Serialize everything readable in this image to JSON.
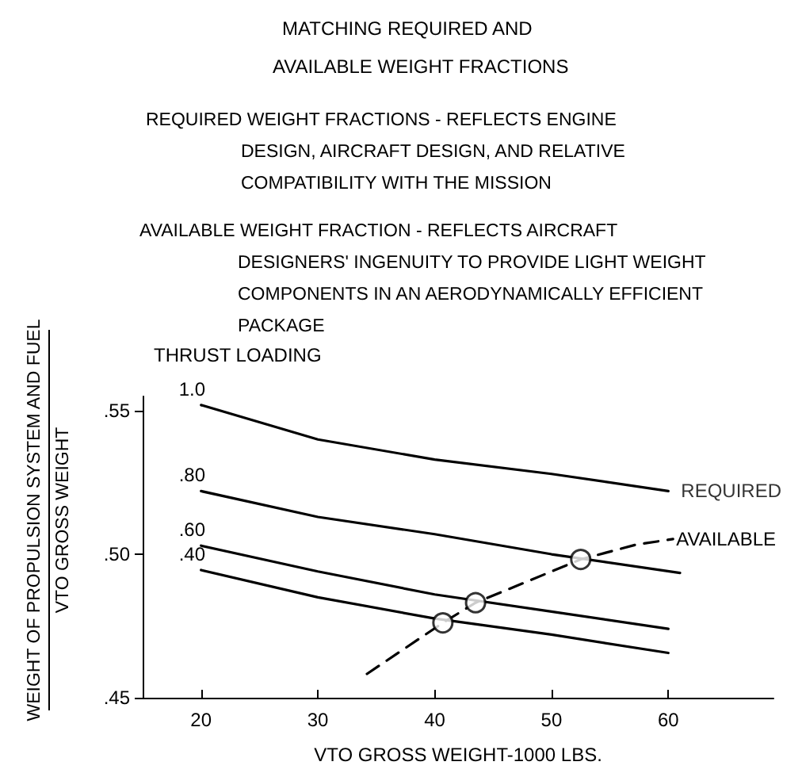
{
  "chart_data": {
    "type": "line",
    "title": "MATCHING REQUIRED AND\nAVAILABLE WEIGHT FRACTIONS",
    "annotations": [
      "REQUIRED WEIGHT FRACTIONS - REFLECTS ENGINE\nDESIGN, AIRCRAFT DESIGN, AND RELATIVE\nCOMPATIBILITY WITH THE MISSION",
      "AVAILABLE WEIGHT FRACTION - REFLECTS AIRCRAFT\nDESIGNERS' INGENUITY TO PROVIDE LIGHT WEIGHT\nCOMPONENTS IN AN AERODYNAMICALLY EFFICIENT\nPACKAGE",
      {
        "text": "REQUIRED",
        "x": 60,
        "y": 0.522
      }
    ],
    "legend_title": "THRUST LOADING",
    "xlabel": "VTO GROSS WEIGHT-1000 LBS.",
    "ylabel": "WEIGHT OF PROPULSION SYSTEM AND FUEL\nVTO GROSS WEIGHT",
    "x": [
      20,
      30,
      40,
      50,
      60
    ],
    "series": [
      {
        "name": "1.0",
        "color": "#000000",
        "values": [
          0.552,
          0.54,
          0.533,
          0.528,
          0.522
        ]
      },
      {
        "name": ".80",
        "color": "#000000",
        "x": [
          20,
          30,
          40,
          50,
          61
        ],
        "values": [
          0.522,
          0.513,
          0.507,
          0.5,
          0.4935
        ]
      },
      {
        "name": ".60",
        "color": "#000000",
        "values": [
          0.503,
          0.494,
          0.486,
          0.48,
          0.474
        ]
      },
      {
        "name": ".40",
        "color": "#000000",
        "values": [
          0.4945,
          0.485,
          0.4776,
          0.472,
          0.4656
        ]
      },
      {
        "name": "AVAILABLE",
        "color": "#000000",
        "line_style": "dashed",
        "x": [
          34.2,
          40.7,
          43.5,
          52.5,
          57.2,
          60.4
        ],
        "values": [
          0.4583,
          0.4761,
          0.4831,
          0.4982,
          0.5033,
          0.5053
        ]
      },
      {
        "type": "scatter",
        "marker": "circle",
        "color": "#000000",
        "x": [
          40.7,
          43.5,
          52.5
        ],
        "values": [
          0.4761,
          0.4831,
          0.4982
        ]
      }
    ],
    "xlim": [
      15,
      69
    ],
    "xticks": [
      20,
      30,
      40,
      50,
      60
    ],
    "ylim": [
      0.45,
      0.555
    ],
    "yticks": [
      {
        "value": 0.45,
        "label": ".45"
      },
      {
        "value": 0.5,
        "label": ".50"
      },
      {
        "value": 0.55,
        "label": ".55"
      }
    ],
    "grid": false,
    "legend": false,
    "marker": "none",
    "line_style": "solid"
  }
}
